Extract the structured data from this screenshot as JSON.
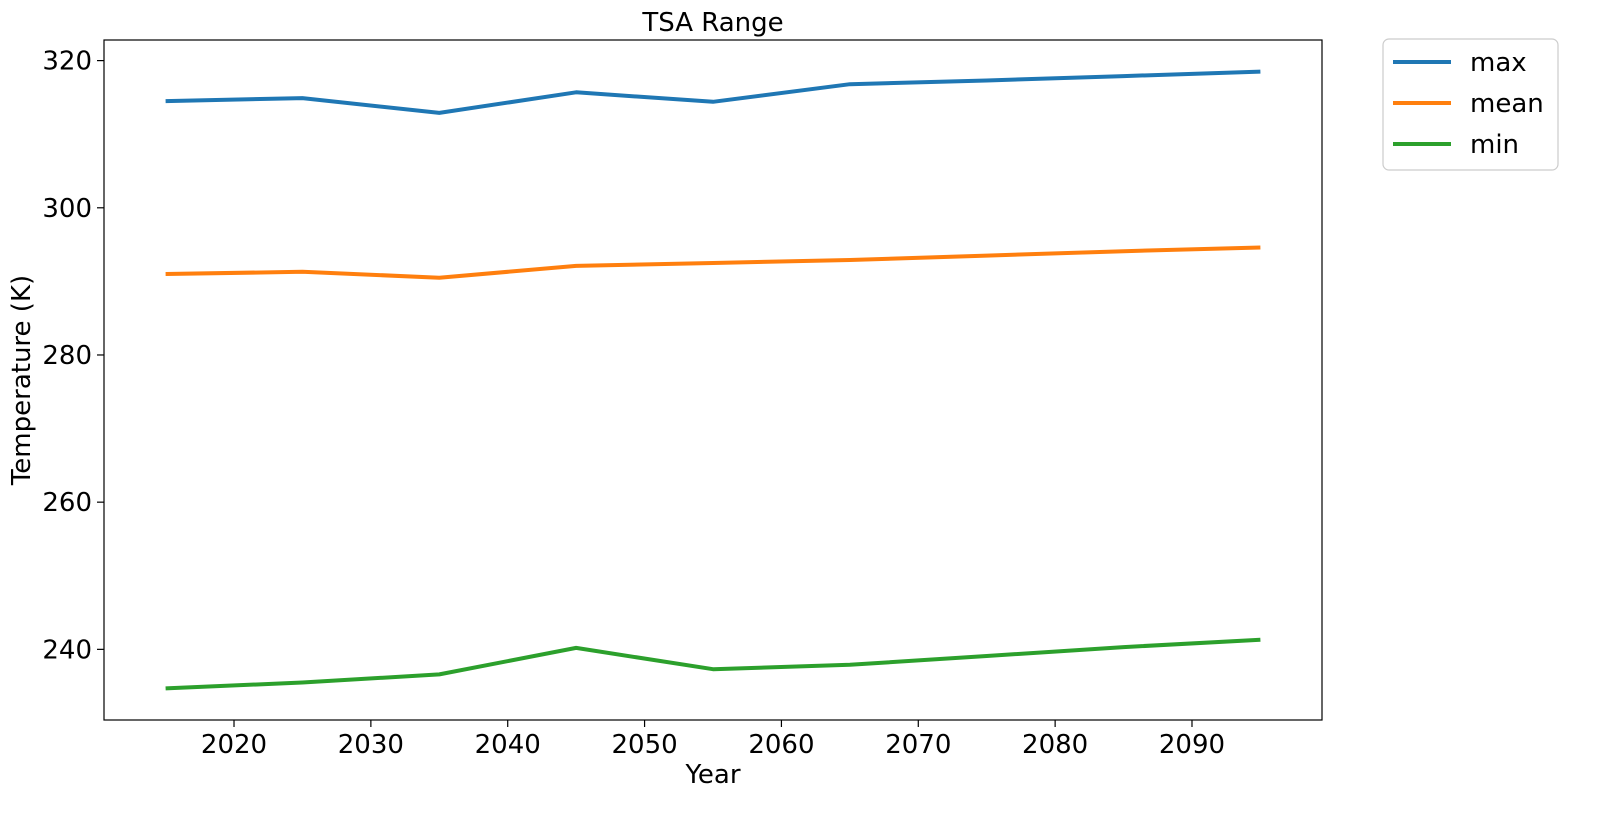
{
  "chart_data": {
    "type": "line",
    "title": "TSA Range",
    "xlabel": "Year",
    "ylabel": "Temperature (K)",
    "x": [
      2015,
      2025,
      2035,
      2045,
      2055,
      2065,
      2075,
      2085,
      2095
    ],
    "xlim": [
      2010.5,
      2099.5
    ],
    "ylim": [
      230.4,
      322.8
    ],
    "xticks": [
      2020,
      2030,
      2040,
      2050,
      2060,
      2070,
      2080,
      2090
    ],
    "yticks": [
      240,
      260,
      280,
      300,
      320
    ],
    "grid": false,
    "legend_position": "outside-top-right",
    "series": [
      {
        "name": "max",
        "color": "#1f77b4",
        "values": [
          314.5,
          314.9,
          312.9,
          315.7,
          314.4,
          316.8,
          317.3,
          317.9,
          318.5
        ]
      },
      {
        "name": "mean",
        "color": "#ff7f0e",
        "values": [
          291.0,
          291.3,
          290.5,
          292.1,
          292.5,
          292.9,
          293.5,
          294.1,
          294.6
        ]
      },
      {
        "name": "min",
        "color": "#2ca02c",
        "values": [
          234.7,
          235.5,
          236.6,
          240.2,
          237.3,
          237.9,
          239.1,
          240.3,
          241.3
        ]
      }
    ]
  }
}
